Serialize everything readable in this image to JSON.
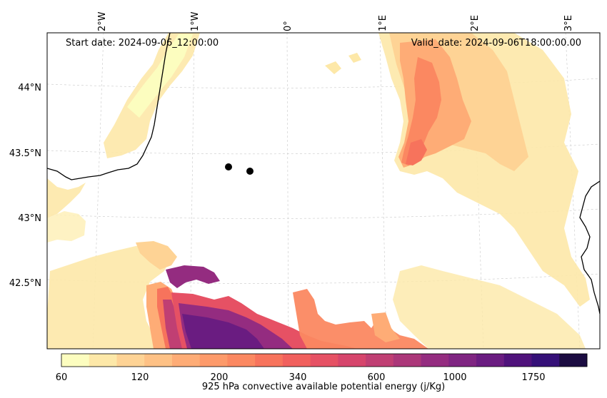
{
  "header": {
    "start_date": "Start date: 2024-09-06_12:00:00",
    "valid_date": "Valid_date: 2024-09-06T18:00:00.00"
  },
  "map": {
    "lon_labels": [
      "2°W",
      "1°W",
      "0°",
      "1°E",
      "2°E",
      "3°E"
    ],
    "lat_labels": [
      "44°N",
      "43.5°N",
      "43°N",
      "42.5°N"
    ],
    "markers": [
      {
        "name": "marker-1"
      },
      {
        "name": "marker-2"
      }
    ]
  },
  "colorbar": {
    "label": "925 hPa convective available potential energy (j/Kg)",
    "tick_labels": [
      "60",
      "120",
      "200",
      "340",
      "600",
      "1000",
      "1750"
    ],
    "colors": [
      "#fcfdbf",
      "#fde8a8",
      "#fed395",
      "#fec185",
      "#feac76",
      "#fd9a6a",
      "#fb8861",
      "#f7735c",
      "#f1605d",
      "#e65164",
      "#d6456c",
      "#c03f73",
      "#ab3779",
      "#942c80",
      "#7f2582",
      "#6a1c81",
      "#4f127b",
      "#351078",
      "#1b0c41"
    ]
  }
}
